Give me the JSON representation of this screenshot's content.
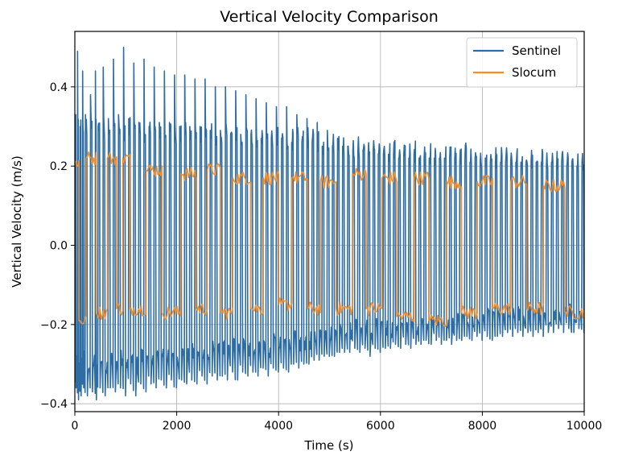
{
  "chart_data": {
    "type": "line",
    "title": "Vertical Velocity Comparison",
    "xlabel": "Time (s)",
    "ylabel": "Vertical Velocity (m/s)",
    "xlim": [
      0,
      10000
    ],
    "ylim": [
      -0.42,
      0.54
    ],
    "xticks": [
      0,
      2000,
      4000,
      6000,
      8000,
      10000
    ],
    "xtick_labels": [
      "0",
      "2000",
      "4000",
      "6000",
      "8000",
      "10000"
    ],
    "yticks": [
      -0.4,
      -0.2,
      0.0,
      0.2,
      0.4
    ],
    "ytick_labels": [
      "−0.4",
      "−0.2",
      "0.0",
      "0.2",
      "0.4"
    ],
    "grid": true,
    "legend_position": "top-right",
    "series": [
      {
        "name": "Sentinel",
        "color": "#2e6da4",
        "x": [
          0,
          50,
          100,
          150,
          200,
          300,
          400,
          450,
          550,
          650,
          750,
          850,
          950,
          1050,
          1150,
          1250,
          1350,
          1450,
          1550,
          1650,
          1750,
          1850,
          1950,
          2050,
          2150,
          2250,
          2350,
          2450,
          2550,
          2650,
          2750,
          2850,
          2950,
          3050,
          3150,
          3250,
          3350,
          3450,
          3550,
          3650,
          3750,
          3850,
          3950,
          4050,
          4150,
          4250,
          4350,
          4450,
          4550,
          4650,
          4750,
          4850,
          4950,
          5050,
          5150,
          5250,
          5350,
          5450,
          5550,
          5650,
          5750,
          5850,
          5950,
          6050,
          6150,
          6250,
          6350,
          6450,
          6550,
          6650,
          6750,
          6850,
          6950,
          7050,
          7150,
          7250,
          7350,
          7450,
          7550,
          7650,
          7750,
          7850,
          7950,
          8050,
          8150,
          8250,
          8350,
          8450,
          8550,
          8650,
          8750,
          8850,
          8950,
          9050,
          9150,
          9250,
          9350,
          9450,
          9550,
          9650,
          9750,
          9850,
          9950
        ],
        "peaks_high": [
          0.33,
          0.49,
          0.3,
          0.44,
          0.33,
          0.38,
          0.44,
          0.3,
          0.45,
          0.32,
          0.47,
          0.33,
          0.5,
          0.32,
          0.46,
          0.31,
          0.47,
          0.3,
          0.45,
          0.31,
          0.44,
          0.31,
          0.43,
          0.3,
          0.43,
          0.3,
          0.42,
          0.3,
          0.42,
          0.29,
          0.4,
          0.29,
          0.4,
          0.28,
          0.39,
          0.28,
          0.38,
          0.28,
          0.37,
          0.27,
          0.36,
          0.27,
          0.35,
          0.27,
          0.35,
          0.26,
          0.33,
          0.26,
          0.32,
          0.26,
          0.31,
          0.25,
          0.29,
          0.25,
          0.27,
          0.25,
          0.25,
          0.24,
          0.24,
          0.24,
          0.23,
          0.24,
          0.23,
          0.23,
          0.23,
          0.23,
          0.22,
          0.23,
          0.22,
          0.23,
          0.22,
          0.22,
          0.22,
          0.22,
          0.22,
          0.22,
          0.22,
          0.22,
          0.21,
          0.22,
          0.21,
          0.22,
          0.21,
          0.22,
          0.21,
          0.21,
          0.21,
          0.21,
          0.21,
          0.21,
          0.21,
          0.21,
          0.21,
          0.21,
          0.21,
          0.2,
          0.21,
          0.2,
          0.21,
          0.2,
          0.21,
          0.2,
          0.21
        ],
        "peaks_low": [
          -0.36,
          -0.39,
          -0.38,
          -0.36,
          -0.38,
          -0.37,
          -0.39,
          -0.36,
          -0.38,
          -0.36,
          -0.37,
          -0.36,
          -0.38,
          -0.35,
          -0.38,
          -0.35,
          -0.37,
          -0.35,
          -0.36,
          -0.34,
          -0.36,
          -0.34,
          -0.36,
          -0.34,
          -0.35,
          -0.34,
          -0.35,
          -0.33,
          -0.35,
          -0.33,
          -0.34,
          -0.33,
          -0.34,
          -0.32,
          -0.34,
          -0.32,
          -0.33,
          -0.32,
          -0.33,
          -0.31,
          -0.33,
          -0.31,
          -0.32,
          -0.31,
          -0.32,
          -0.3,
          -0.31,
          -0.3,
          -0.3,
          -0.29,
          -0.29,
          -0.28,
          -0.28,
          -0.28,
          -0.27,
          -0.27,
          -0.27,
          -0.26,
          -0.27,
          -0.26,
          -0.28,
          -0.26,
          -0.27,
          -0.26,
          -0.26,
          -0.25,
          -0.26,
          -0.25,
          -0.26,
          -0.25,
          -0.25,
          -0.24,
          -0.25,
          -0.24,
          -0.25,
          -0.24,
          -0.25,
          -0.24,
          -0.24,
          -0.23,
          -0.24,
          -0.23,
          -0.24,
          -0.23,
          -0.24,
          -0.23,
          -0.23,
          -0.22,
          -0.23,
          -0.22,
          -0.23,
          -0.22,
          -0.23,
          -0.22,
          -0.23,
          -0.22,
          -0.22,
          -0.21,
          -0.22,
          -0.21,
          -0.22,
          -0.21,
          -0.22
        ]
      },
      {
        "name": "Slocum",
        "color": "#f28e2b",
        "segments": [
          {
            "t0": 0,
            "t1": 80,
            "v": 0.21
          },
          {
            "t0": 80,
            "t1": 220,
            "v": -0.19
          },
          {
            "t0": 220,
            "t1": 420,
            "v": 0.22
          },
          {
            "t0": 420,
            "t1": 640,
            "v": -0.17
          },
          {
            "t0": 640,
            "t1": 820,
            "v": 0.22
          },
          {
            "t0": 820,
            "t1": 940,
            "v": -0.16
          },
          {
            "t0": 940,
            "t1": 1080,
            "v": 0.22
          },
          {
            "t0": 1080,
            "t1": 1400,
            "v": -0.16
          },
          {
            "t0": 1400,
            "t1": 1710,
            "v": 0.19
          },
          {
            "t0": 1710,
            "t1": 2080,
            "v": -0.17
          },
          {
            "t0": 2080,
            "t1": 2380,
            "v": 0.18
          },
          {
            "t0": 2380,
            "t1": 2600,
            "v": -0.16
          },
          {
            "t0": 2600,
            "t1": 2860,
            "v": 0.19
          },
          {
            "t0": 2860,
            "t1": 3100,
            "v": -0.17
          },
          {
            "t0": 3100,
            "t1": 3450,
            "v": 0.17
          },
          {
            "t0": 3450,
            "t1": 3700,
            "v": -0.16
          },
          {
            "t0": 3700,
            "t1": 4000,
            "v": 0.17
          },
          {
            "t0": 4000,
            "t1": 4260,
            "v": -0.15
          },
          {
            "t0": 4260,
            "t1": 4570,
            "v": 0.17
          },
          {
            "t0": 4570,
            "t1": 4820,
            "v": -0.16
          },
          {
            "t0": 4820,
            "t1": 5130,
            "v": 0.16
          },
          {
            "t0": 5130,
            "t1": 5450,
            "v": -0.16
          },
          {
            "t0": 5450,
            "t1": 5720,
            "v": 0.18
          },
          {
            "t0": 5720,
            "t1": 6030,
            "v": -0.16
          },
          {
            "t0": 6030,
            "t1": 6320,
            "v": 0.17
          },
          {
            "t0": 6320,
            "t1": 6660,
            "v": -0.18
          },
          {
            "t0": 6660,
            "t1": 6950,
            "v": 0.17
          },
          {
            "t0": 6950,
            "t1": 7300,
            "v": -0.19
          },
          {
            "t0": 7300,
            "t1": 7590,
            "v": 0.16
          },
          {
            "t0": 7590,
            "t1": 7900,
            "v": -0.17
          },
          {
            "t0": 7900,
            "t1": 8200,
            "v": 0.16
          },
          {
            "t0": 8200,
            "t1": 8560,
            "v": -0.16
          },
          {
            "t0": 8560,
            "t1": 8870,
            "v": 0.16
          },
          {
            "t0": 8870,
            "t1": 9200,
            "v": -0.16
          },
          {
            "t0": 9200,
            "t1": 9620,
            "v": 0.15
          },
          {
            "t0": 9620,
            "t1": 10000,
            "v": -0.17
          }
        ]
      }
    ]
  }
}
